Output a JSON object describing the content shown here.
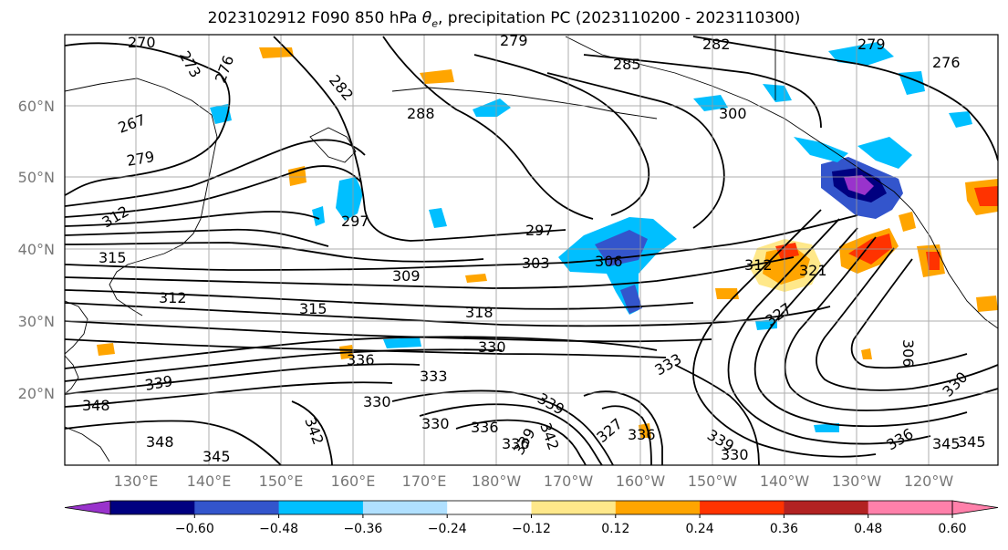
{
  "title": {
    "main": "2023102912 F090 850 hPa ",
    "theta": "θ",
    "theta_sub": "e",
    "rest": ", precipitation PC (2023110200 - 2023110300)"
  },
  "map": {
    "lat_labels": [
      "60°N",
      "50°N",
      "40°N",
      "30°N",
      "20°N"
    ],
    "lon_labels": [
      "130°E",
      "140°E",
      "150°E",
      "160°E",
      "170°E",
      "180°W",
      "170°W",
      "160°W",
      "150°W",
      "140°W",
      "130°W",
      "120°W"
    ],
    "contour_labels": [
      "270",
      "273",
      "276",
      "267",
      "279",
      "282",
      "288",
      "279",
      "285",
      "282",
      "300",
      "279",
      "276",
      "297",
      "297",
      "303",
      "306",
      "309",
      "312",
      "315",
      "318",
      "312",
      "321",
      "327",
      "315",
      "312",
      "330",
      "336",
      "333",
      "330",
      "339",
      "348",
      "333",
      "330",
      "336",
      "339",
      "342",
      "336",
      "339",
      "345",
      "348",
      "342",
      "327",
      "336",
      "339",
      "330",
      "345",
      "306",
      "330",
      "336",
      "345"
    ],
    "colors": {
      "land_lines": "#000000",
      "grid": "#999999"
    }
  },
  "colorbar": {
    "colors": [
      "#9933cc",
      "#000080",
      "#3355cc",
      "#00bfff",
      "#b0e0ff",
      "#ffffff",
      "#ffe88a",
      "#ffa500",
      "#ff3300",
      "#b22222",
      "#ff80aa",
      "#ff80aa"
    ],
    "tick_labels": [
      "−0.60",
      "−0.48",
      "−0.36",
      "−0.24",
      "−0.12",
      "0.12",
      "0.24",
      "0.36",
      "0.48",
      "0.60"
    ]
  }
}
